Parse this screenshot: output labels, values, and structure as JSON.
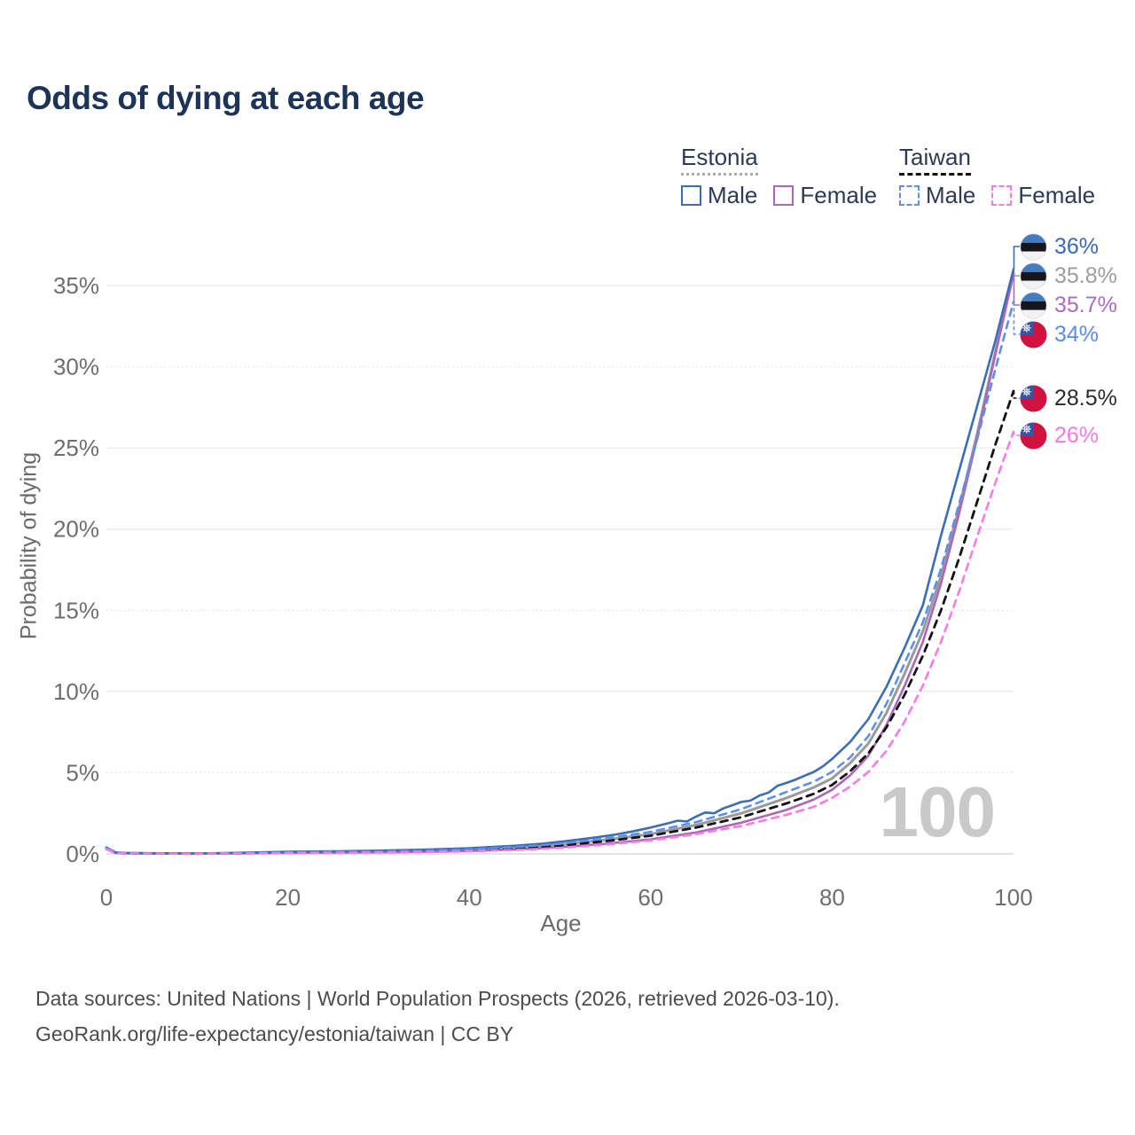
{
  "title": "Odds of dying at each age",
  "watermark_age": "100",
  "legend": {
    "groups": [
      {
        "country": "Estonia",
        "underline": "dotted-gray",
        "items": [
          {
            "label": "Male",
            "color": "#3b6db8",
            "dashed": false
          },
          {
            "label": "Female",
            "color": "#aa68b8",
            "dashed": false
          }
        ]
      },
      {
        "country": "Taiwan",
        "underline": "dashed-black",
        "items": [
          {
            "label": "Male",
            "color": "#5f8fee",
            "dashed": true
          },
          {
            "label": "Female",
            "color": "#f97ae6",
            "dashed": true
          }
        ]
      }
    ]
  },
  "footer": {
    "line1": "Data sources: United Nations | World Population Prospects (2026, retrieved 2026-03-10).",
    "line2": "GeoRank.org/life-expectancy/estonia/taiwan | CC BY"
  },
  "chart_data": {
    "type": "line",
    "title": "Odds of dying at each age",
    "xlabel": "Age",
    "ylabel": "Probability of dying",
    "xlim": [
      0,
      100
    ],
    "ylim": [
      0,
      37
    ],
    "grid": true,
    "x_ticks": [
      {
        "v": 0,
        "label": "0"
      },
      {
        "v": 20,
        "label": "20"
      },
      {
        "v": 40,
        "label": "40"
      },
      {
        "v": 60,
        "label": "60"
      },
      {
        "v": 80,
        "label": "80"
      },
      {
        "v": 100,
        "label": "100"
      }
    ],
    "y_ticks": [
      {
        "v": 0,
        "label": "0%"
      },
      {
        "v": 5,
        "label": "5%"
      },
      {
        "v": 10,
        "label": "10%"
      },
      {
        "v": 15,
        "label": "15%"
      },
      {
        "v": 20,
        "label": "20%"
      },
      {
        "v": 25,
        "label": "25%"
      },
      {
        "v": 30,
        "label": "30%"
      },
      {
        "v": 35,
        "label": "35%"
      }
    ],
    "series": [
      {
        "id": "estonia-combined",
        "country": "Estonia",
        "group": "combined",
        "color": "#9a9a9a",
        "style": "solid",
        "width": 3,
        "end_label": "35.8%",
        "end_label_color": "#9d9da2",
        "flag": "estonia",
        "points": [
          [
            0,
            0.38
          ],
          [
            1,
            0.08
          ],
          [
            2,
            0.05
          ],
          [
            5,
            0.032
          ],
          [
            10,
            0.022
          ],
          [
            15,
            0.05
          ],
          [
            20,
            0.09
          ],
          [
            25,
            0.11
          ],
          [
            30,
            0.14
          ],
          [
            35,
            0.19
          ],
          [
            40,
            0.27
          ],
          [
            45,
            0.39
          ],
          [
            50,
            0.58
          ],
          [
            55,
            0.86
          ],
          [
            60,
            1.22
          ],
          [
            65,
            1.78
          ],
          [
            70,
            2.5
          ],
          [
            75,
            3.45
          ],
          [
            78,
            4.1
          ],
          [
            80,
            4.65
          ],
          [
            82,
            5.6
          ],
          [
            84,
            6.8
          ],
          [
            86,
            8.7
          ],
          [
            88,
            11.1
          ],
          [
            90,
            13.7
          ],
          [
            92,
            17.1
          ],
          [
            94,
            21.3
          ],
          [
            96,
            25.9
          ],
          [
            98,
            30.9
          ],
          [
            100,
            35.8
          ]
        ]
      },
      {
        "id": "estonia-female",
        "country": "Estonia",
        "group": "Female",
        "color": "#aa68b8",
        "style": "solid",
        "width": 2.6,
        "end_label": "35.7%",
        "end_label_color": "#ad6cbf",
        "flag": "estonia",
        "points": [
          [
            0,
            0.33
          ],
          [
            1,
            0.07
          ],
          [
            2,
            0.045
          ],
          [
            5,
            0.026
          ],
          [
            10,
            0.018
          ],
          [
            15,
            0.04
          ],
          [
            20,
            0.06
          ],
          [
            25,
            0.076
          ],
          [
            30,
            0.096
          ],
          [
            35,
            0.13
          ],
          [
            40,
            0.18
          ],
          [
            45,
            0.27
          ],
          [
            50,
            0.42
          ],
          [
            55,
            0.62
          ],
          [
            60,
            0.9
          ],
          [
            65,
            1.32
          ],
          [
            70,
            1.92
          ],
          [
            75,
            2.72
          ],
          [
            78,
            3.35
          ],
          [
            80,
            3.95
          ],
          [
            82,
            4.85
          ],
          [
            84,
            6.05
          ],
          [
            86,
            7.95
          ],
          [
            88,
            10.35
          ],
          [
            90,
            13.05
          ],
          [
            92,
            16.65
          ],
          [
            94,
            20.95
          ],
          [
            96,
            25.65
          ],
          [
            98,
            30.75
          ],
          [
            100,
            35.7
          ]
        ]
      },
      {
        "id": "estonia-male",
        "country": "Estonia",
        "group": "Male",
        "color": "#3b6db8",
        "style": "solid",
        "width": 2.6,
        "end_label": "36%",
        "end_label_color": "#3a68b8",
        "flag": "estonia",
        "points": [
          [
            0,
            0.4
          ],
          [
            1,
            0.09
          ],
          [
            2,
            0.06
          ],
          [
            5,
            0.04
          ],
          [
            10,
            0.03
          ],
          [
            15,
            0.07
          ],
          [
            20,
            0.13
          ],
          [
            25,
            0.16
          ],
          [
            30,
            0.2
          ],
          [
            35,
            0.26
          ],
          [
            40,
            0.35
          ],
          [
            45,
            0.5
          ],
          [
            48,
            0.62
          ],
          [
            50,
            0.75
          ],
          [
            52,
            0.88
          ],
          [
            54,
            1.02
          ],
          [
            56,
            1.18
          ],
          [
            58,
            1.38
          ],
          [
            60,
            1.62
          ],
          [
            62,
            1.9
          ],
          [
            63,
            2.05
          ],
          [
            64,
            2.0
          ],
          [
            65,
            2.3
          ],
          [
            66,
            2.55
          ],
          [
            67,
            2.5
          ],
          [
            68,
            2.8
          ],
          [
            69,
            3.0
          ],
          [
            70,
            3.2
          ],
          [
            71,
            3.28
          ],
          [
            72,
            3.6
          ],
          [
            73,
            3.78
          ],
          [
            74,
            4.2
          ],
          [
            75,
            4.38
          ],
          [
            76,
            4.58
          ],
          [
            77,
            4.82
          ],
          [
            78,
            5.05
          ],
          [
            79,
            5.4
          ],
          [
            80,
            5.85
          ],
          [
            82,
            6.9
          ],
          [
            84,
            8.3
          ],
          [
            86,
            10.3
          ],
          [
            88,
            12.7
          ],
          [
            90,
            15.3
          ],
          [
            92,
            19.6
          ],
          [
            94,
            23.6
          ],
          [
            96,
            27.6
          ],
          [
            98,
            31.6
          ],
          [
            100,
            36
          ]
        ]
      },
      {
        "id": "taiwan-combined",
        "country": "Taiwan",
        "group": "combined",
        "color": "#141414",
        "style": "dashed",
        "width": 2.8,
        "end_label": "28.5%",
        "end_label_color": "#2b2b2b",
        "flag": "taiwan",
        "points": [
          [
            0,
            0.31
          ],
          [
            1,
            0.06
          ],
          [
            2,
            0.04
          ],
          [
            5,
            0.024
          ],
          [
            10,
            0.017
          ],
          [
            15,
            0.04
          ],
          [
            20,
            0.076
          ],
          [
            25,
            0.092
          ],
          [
            30,
            0.12
          ],
          [
            35,
            0.16
          ],
          [
            40,
            0.23
          ],
          [
            45,
            0.34
          ],
          [
            50,
            0.52
          ],
          [
            55,
            0.78
          ],
          [
            60,
            1.12
          ],
          [
            65,
            1.62
          ],
          [
            70,
            2.26
          ],
          [
            75,
            3.12
          ],
          [
            78,
            3.7
          ],
          [
            80,
            4.25
          ],
          [
            82,
            5.1
          ],
          [
            84,
            6.2
          ],
          [
            86,
            7.8
          ],
          [
            88,
            9.8
          ],
          [
            90,
            12.2
          ],
          [
            92,
            15
          ],
          [
            94,
            18.2
          ],
          [
            96,
            21.7
          ],
          [
            98,
            25.2
          ],
          [
            100,
            28.5
          ]
        ]
      },
      {
        "id": "taiwan-male",
        "country": "Taiwan",
        "group": "Male",
        "color": "#5f8fee",
        "style": "dashed",
        "width": 2.6,
        "end_label": "34%",
        "end_label_color": "#5a8cf0",
        "flag": "taiwan",
        "points": [
          [
            0,
            0.36
          ],
          [
            1,
            0.07
          ],
          [
            2,
            0.05
          ],
          [
            5,
            0.03
          ],
          [
            10,
            0.02
          ],
          [
            15,
            0.05
          ],
          [
            20,
            0.1
          ],
          [
            25,
            0.12
          ],
          [
            30,
            0.15
          ],
          [
            35,
            0.2
          ],
          [
            40,
            0.28
          ],
          [
            45,
            0.42
          ],
          [
            50,
            0.62
          ],
          [
            55,
            0.95
          ],
          [
            60,
            1.36
          ],
          [
            65,
            1.96
          ],
          [
            70,
            2.76
          ],
          [
            75,
            3.82
          ],
          [
            78,
            4.45
          ],
          [
            80,
            5.05
          ],
          [
            82,
            5.95
          ],
          [
            84,
            7.25
          ],
          [
            86,
            9.25
          ],
          [
            88,
            11.75
          ],
          [
            90,
            14.25
          ],
          [
            92,
            17.55
          ],
          [
            94,
            21.55
          ],
          [
            96,
            25.55
          ],
          [
            98,
            29.85
          ],
          [
            100,
            34
          ]
        ]
      },
      {
        "id": "taiwan-female",
        "country": "Taiwan",
        "group": "Female",
        "color": "#f97ae6",
        "style": "dashed",
        "width": 2.6,
        "end_label": "26%",
        "end_label_color": "#f27ae0",
        "flag": "taiwan",
        "points": [
          [
            0,
            0.29
          ],
          [
            1,
            0.05
          ],
          [
            2,
            0.035
          ],
          [
            5,
            0.02
          ],
          [
            10,
            0.014
          ],
          [
            15,
            0.03
          ],
          [
            20,
            0.05
          ],
          [
            25,
            0.063
          ],
          [
            30,
            0.08
          ],
          [
            35,
            0.11
          ],
          [
            40,
            0.16
          ],
          [
            45,
            0.24
          ],
          [
            50,
            0.37
          ],
          [
            55,
            0.57
          ],
          [
            60,
            0.83
          ],
          [
            65,
            1.22
          ],
          [
            70,
            1.72
          ],
          [
            75,
            2.42
          ],
          [
            78,
            2.9
          ],
          [
            80,
            3.45
          ],
          [
            82,
            4.15
          ],
          [
            84,
            5.05
          ],
          [
            86,
            6.35
          ],
          [
            88,
            8.15
          ],
          [
            90,
            10.35
          ],
          [
            92,
            13.05
          ],
          [
            94,
            16.15
          ],
          [
            96,
            19.55
          ],
          [
            98,
            22.85
          ],
          [
            100,
            26
          ]
        ]
      }
    ]
  }
}
